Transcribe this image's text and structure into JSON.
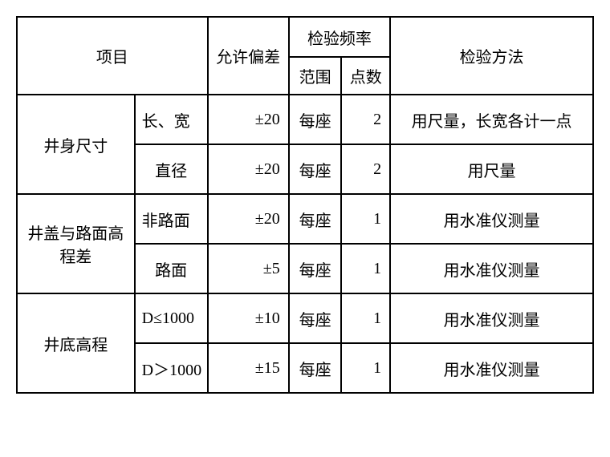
{
  "headers": {
    "project": "项目",
    "deviation": "允许偏差",
    "freq": "检验频率",
    "range": "范围",
    "points": "点数",
    "method": "检验方法"
  },
  "rows": [
    {
      "group": "井身尺寸",
      "sub": "长、宽",
      "dev": "±20",
      "range": "每座",
      "points": "2",
      "method": "用尺量，长宽各计一点"
    },
    {
      "group": "",
      "sub": "直径",
      "dev": "±20",
      "range": "每座",
      "points": "2",
      "method": "用尺量"
    },
    {
      "group": "井盖与路面高程差",
      "sub": "非路面",
      "dev": "±20",
      "range": "每座",
      "points": "1",
      "method": "用水准仪测量"
    },
    {
      "group": "",
      "sub": "路面",
      "dev": "±5",
      "range": "每座",
      "points": "1",
      "method": "用水准仪测量"
    },
    {
      "group": "井底高程",
      "sub": "D≤1000",
      "dev": "±10",
      "range": "每座",
      "points": "1",
      "method": "用水准仪测量"
    },
    {
      "group": "",
      "sub": "D＞1000",
      "dev": "±15",
      "range": "每座",
      "points": "1",
      "method": "用水准仪测量"
    }
  ],
  "style": {
    "border_color": "#000000",
    "bg_color": "#ffffff",
    "font_size": 20,
    "header_font_size": 20
  }
}
